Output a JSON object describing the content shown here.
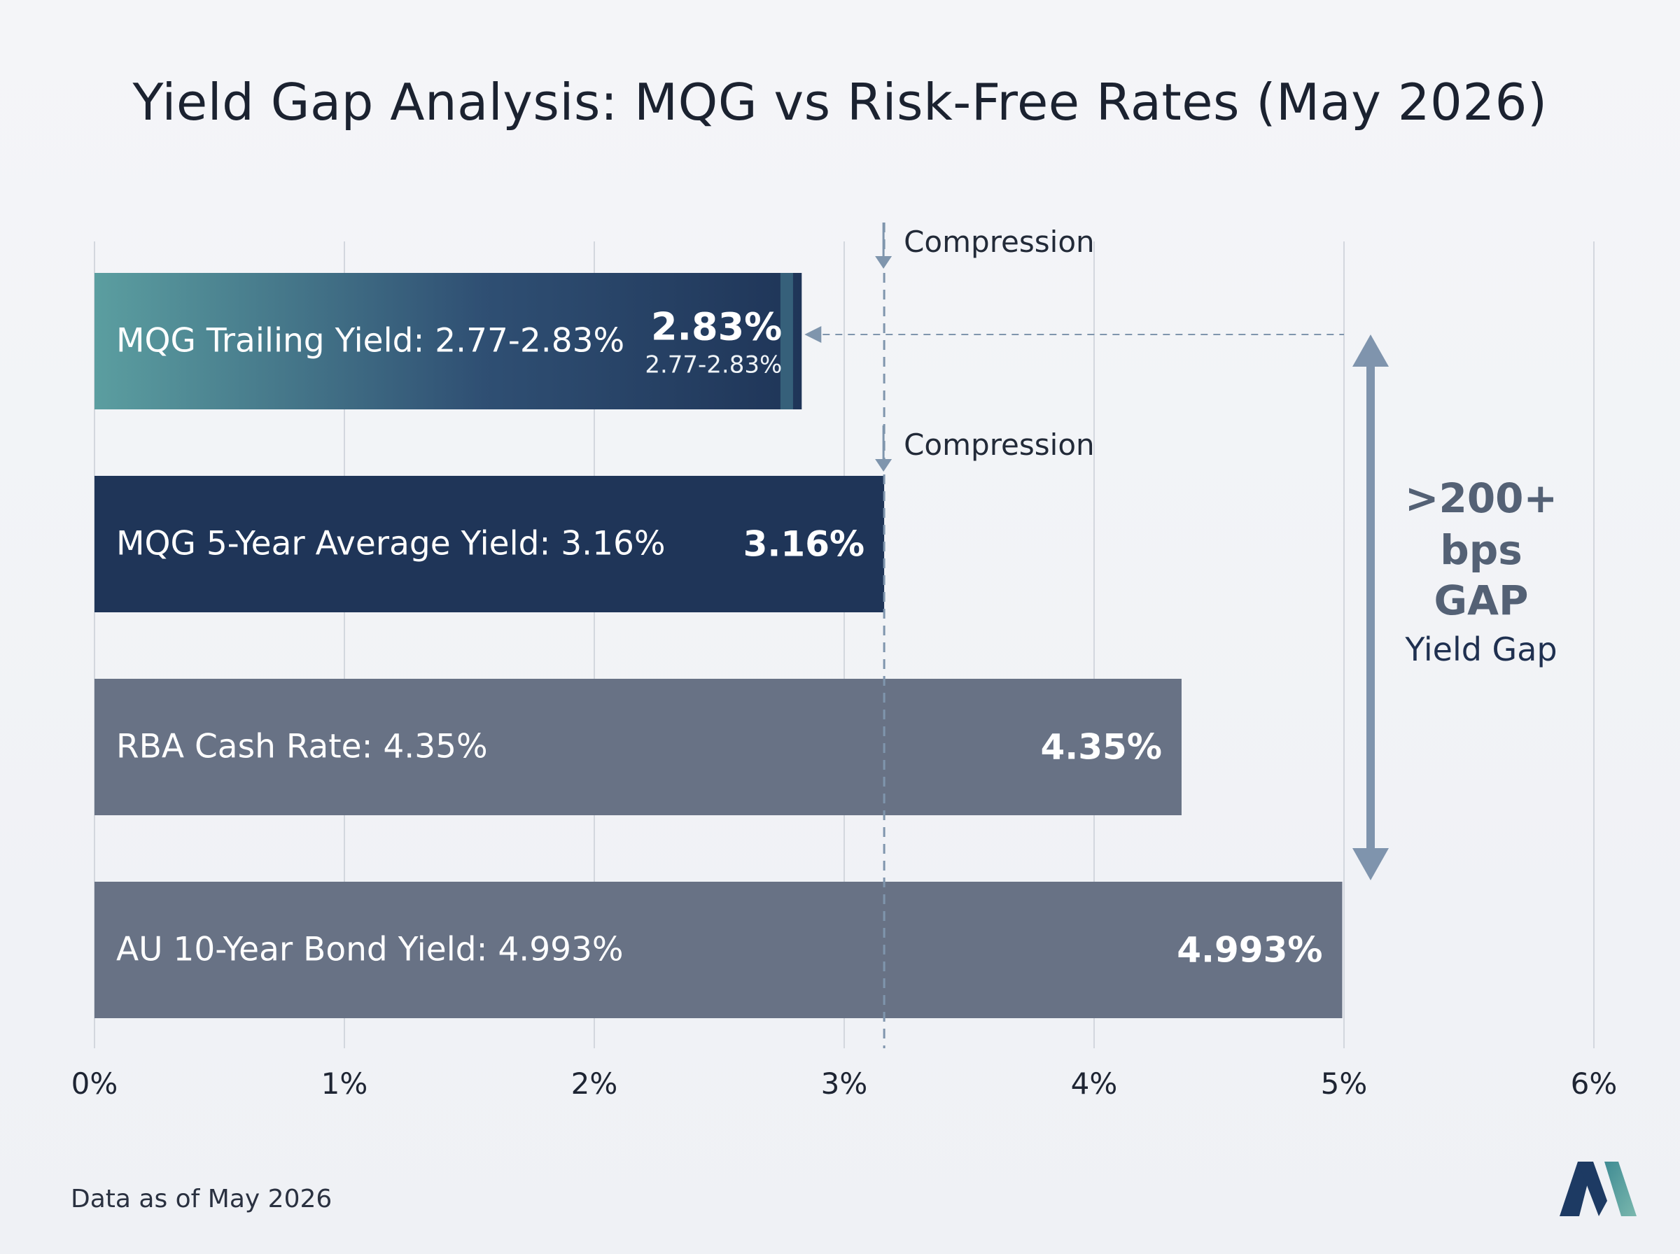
{
  "title": "Yield Gap Analysis: MQG vs Risk-Free Rates (May 2026)",
  "footer_note": "Data as of May 2026",
  "colors": {
    "background": "#f1f3f7",
    "grid": "#d3d7de",
    "bar_mqg_trailing_start": "#5b9ea0",
    "bar_mqg_trailing_end": "#1f3558",
    "bar_mqg_avg": "#1f3558",
    "bar_risk_free": "#687285",
    "reference_line": "#7f95ad",
    "gap_arrow": "#7f94ad",
    "gap_text": "#546175",
    "logo_dark": "#1d3a63",
    "logo_teal": "#4f9a9b"
  },
  "icons": {
    "compression_arrow": "arrow-down-icon",
    "gap_arrow": "double-headed-arrow-icon",
    "logo": "m-logo-icon"
  },
  "chart_data": {
    "type": "bar",
    "orientation": "horizontal",
    "title": "Yield Gap Analysis: MQG vs Risk-Free Rates (May 2026)",
    "xlabel": "",
    "ylabel": "",
    "xlim": [
      0,
      6
    ],
    "x_ticks": [
      0,
      1,
      2,
      3,
      4,
      5,
      6
    ],
    "x_tick_labels": [
      "0%",
      "1%",
      "2%",
      "3%",
      "4%",
      "5%",
      "6%"
    ],
    "grid": true,
    "bars": [
      {
        "label": "MQG Trailing Yield: 2.77-2.83%",
        "value": 2.83,
        "range": [
          2.77,
          2.83
        ],
        "value_label": "2.83%",
        "sub_label": "2.77-2.83%",
        "style": "gradient"
      },
      {
        "label": "MQG 5-Year Average Yield: 3.16%",
        "value": 3.16,
        "value_label": "3.16%",
        "style": "navy"
      },
      {
        "label": "RBA Cash Rate: 4.35%",
        "value": 4.35,
        "value_label": "4.35%",
        "style": "gray"
      },
      {
        "label": "AU 10-Year Bond Yield: 4.993%",
        "value": 4.993,
        "value_label": "4.993%",
        "style": "gray"
      }
    ],
    "annotations": {
      "reference_line_value": 3.16,
      "compression_labels": [
        "Compression",
        "Compression"
      ],
      "gap": {
        "lines": [
          ">200+",
          "bps",
          "GAP"
        ],
        "caption": "Yield Gap"
      }
    }
  }
}
